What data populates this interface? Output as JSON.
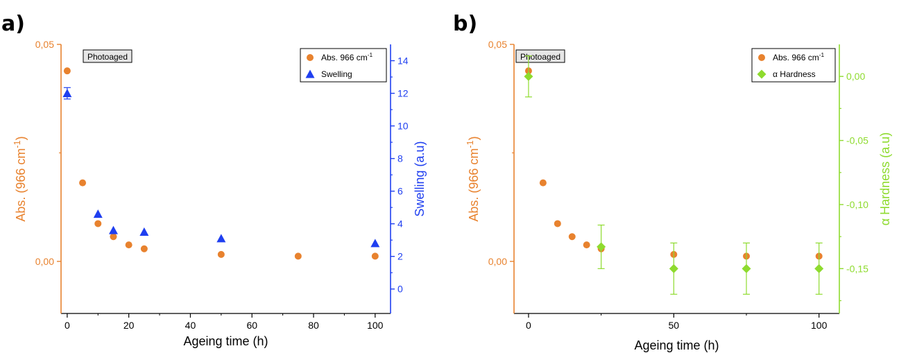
{
  "chart_data": [
    {
      "panel_label": "a)",
      "type": "scatter",
      "annotation": "Photoaged",
      "xlabel": "Ageing time (h)",
      "ylabel": "Abs. (966 cm",
      "ylabel_sup": "-1",
      "ylabel_end": ")",
      "y2label": "Swelling (a.u)",
      "xlim": [
        -2,
        105
      ],
      "ylim": [
        -0.012,
        0.05
      ],
      "y2lim": [
        -1.5,
        15
      ],
      "x_ticks": [
        0,
        20,
        40,
        60,
        80,
        100
      ],
      "x_tick_labels": [
        "0",
        "20",
        "40",
        "60",
        "80",
        "100"
      ],
      "y_ticks": [
        0.0,
        0.05
      ],
      "y_tick_labels": [
        "0,00",
        "0,05"
      ],
      "y2_ticks": [
        0,
        2,
        4,
        6,
        8,
        10,
        12,
        14
      ],
      "y2_tick_labels": [
        "0",
        "2",
        "4",
        "6",
        "8",
        "10",
        "12",
        "14"
      ],
      "legend_position": "top-right",
      "series": [
        {
          "name": "Abs. 966 cm",
          "name_sup": "-1",
          "axis": "left",
          "marker": "circle",
          "color": "#E8822E",
          "x": [
            0,
            5,
            10,
            15,
            20,
            25,
            50,
            75,
            100
          ],
          "y": [
            0.0439,
            0.0181,
            0.0087,
            0.0057,
            0.0038,
            0.0029,
            0.0016,
            0.0012,
            0.0012
          ]
        },
        {
          "name": "Swelling",
          "axis": "right",
          "marker": "triangle",
          "color": "#1F3FF0",
          "x": [
            0,
            10,
            15,
            25,
            50,
            100
          ],
          "y": [
            12.0,
            4.6,
            3.6,
            3.5,
            3.1,
            2.8
          ],
          "error": [
            0.35,
            0,
            0,
            0,
            0,
            0
          ]
        }
      ]
    },
    {
      "panel_label": "b)",
      "type": "scatter",
      "annotation": "Photoaged",
      "xlabel": "Ageing time (h)",
      "ylabel": "Abs. (966 cm",
      "ylabel_sup": "-1",
      "ylabel_end": ")",
      "y2label": "α Hardness (a.u)",
      "xlim": [
        -5,
        107
      ],
      "ylim": [
        -0.012,
        0.05
      ],
      "y2lim": [
        -0.185,
        0.025
      ],
      "x_ticks": [
        0,
        50,
        100
      ],
      "x_tick_labels": [
        "0",
        "50",
        "100"
      ],
      "y_ticks": [
        0.0,
        0.05
      ],
      "y_tick_labels": [
        "0,00",
        "0,05"
      ],
      "y2_ticks": [
        0.0,
        -0.05,
        -0.1,
        -0.15
      ],
      "y2_tick_labels": [
        "0,00",
        "-0,05",
        "-0,10",
        "-0,15"
      ],
      "legend_position": "top-right",
      "series": [
        {
          "name": "Abs. 966 cm",
          "name_sup": "-1",
          "axis": "left",
          "marker": "circle",
          "color": "#E8822E",
          "x": [
            0,
            5,
            10,
            15,
            20,
            25,
            50,
            75,
            100
          ],
          "y": [
            0.0439,
            0.0181,
            0.0087,
            0.0057,
            0.0038,
            0.0029,
            0.0016,
            0.0012,
            0.0012
          ]
        },
        {
          "name": "α Hardness",
          "axis": "right",
          "marker": "diamond",
          "color": "#8EDB2E",
          "x": [
            0,
            25,
            50,
            75,
            100
          ],
          "y": [
            0.0,
            -0.133,
            -0.15,
            -0.15,
            -0.15
          ],
          "error": [
            0.016,
            0.017,
            0.02,
            0.02,
            0.02
          ]
        }
      ]
    }
  ]
}
